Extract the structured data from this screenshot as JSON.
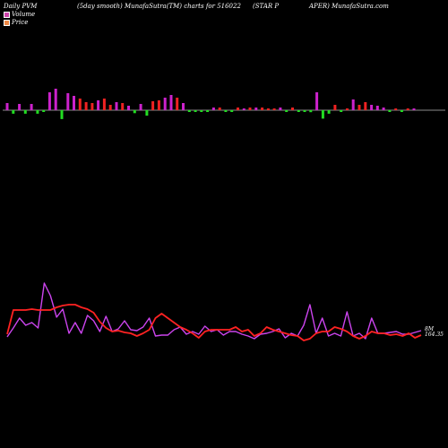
{
  "header": {
    "part1": "Daily PVM",
    "part2": "(5day smooth) MunafaSutra(TM) charts for 516022",
    "part3": "(STAR P",
    "part4": "APER) MunafaSutra.com"
  },
  "legend": {
    "volume_label": "Volume",
    "price_label": "Price"
  },
  "colors": {
    "background": "#000000",
    "volume_up": "#cc22cc",
    "volume_down": "#ee2222",
    "volume_neutral": "#22dd22",
    "price_line": "#ff2222",
    "volume_line": "#cc44ee",
    "baseline": "#bbbbbb",
    "legend_volume": "#cc44aa",
    "legend_price": "#ee8844"
  },
  "chart_data": {
    "type": "bar",
    "title": "Daily PVM (5day smooth) MunafaSutra(TM) charts for 516022 (STAR PAPER) MunafaSutra.com",
    "volume_bars": {
      "values": [
        8,
        7,
        7,
        7,
        7,
        7,
        3,
        20,
        24,
        18,
        19,
        16,
        13,
        9,
        8,
        11,
        13,
        6,
        9,
        8,
        5,
        6,
        7,
        11,
        10,
        11,
        14,
        17,
        14,
        8,
        3,
        3,
        2,
        2,
        3,
        3,
        3,
        3,
        3,
        2,
        3,
        3,
        3,
        2,
        2,
        3,
        3,
        3,
        2,
        2,
        4,
        20,
        17,
        7,
        6,
        3,
        1,
        12,
        6,
        9,
        6,
        5,
        3,
        2,
        2,
        1,
        1,
        2
      ],
      "colors": [
        "m",
        "g",
        "m",
        "g",
        "m",
        "g",
        "g",
        "m",
        "m",
        "g",
        "m",
        "m",
        "r",
        "r",
        "r",
        "m",
        "r",
        "r",
        "m",
        "r",
        "m",
        "g",
        "m",
        "g",
        "r",
        "r",
        "m",
        "m",
        "r",
        "m",
        "g",
        "g",
        "g",
        "g",
        "m",
        "r",
        "g",
        "g",
        "r",
        "m",
        "r",
        "m",
        "r",
        "r",
        "r",
        "m",
        "g",
        "r",
        "g",
        "g",
        "g",
        "m",
        "g",
        "g",
        "r",
        "g",
        "r",
        "m",
        "r",
        "r",
        "m",
        "m",
        "m",
        "g",
        "r",
        "g",
        "r",
        "m"
      ]
    },
    "series": [
      {
        "values": [
          373,
          346,
          346,
          346,
          345,
          346,
          346,
          346,
          343,
          341,
          340,
          340,
          343,
          345,
          349,
          359,
          366,
          370,
          369,
          371,
          372,
          375,
          372,
          368,
          355,
          350,
          355,
          360,
          365,
          368,
          372,
          377,
          370,
          368,
          368,
          368,
          368,
          365,
          370,
          368,
          375,
          372,
          365,
          368,
          370,
          372,
          374,
          375,
          380,
          378,
          372,
          370,
          370,
          365,
          367,
          370,
          375,
          378,
          375,
          370,
          372,
          372,
          374,
          373,
          375,
          372,
          377,
          374
        ]
      },
      {
        "values": [
          376,
          366,
          355,
          363,
          360,
          366,
          316,
          330,
          354,
          345,
          372,
          360,
          372,
          352,
          358,
          370,
          353,
          370,
          367,
          358,
          368,
          369,
          365,
          355,
          375,
          374,
          374,
          368,
          365,
          373,
          370,
          373,
          364,
          370,
          368,
          374,
          370,
          370,
          373,
          375,
          378,
          373,
          372,
          370,
          367,
          377,
          372,
          375,
          363,
          340,
          372,
          355,
          375,
          372,
          375,
          348,
          375,
          372,
          378,
          355,
          372,
          372,
          371,
          370,
          373,
          373,
          371,
          369
        ]
      }
    ],
    "value_labels": {
      "volume": "8M",
      "price": "164.35"
    },
    "grid": false
  }
}
